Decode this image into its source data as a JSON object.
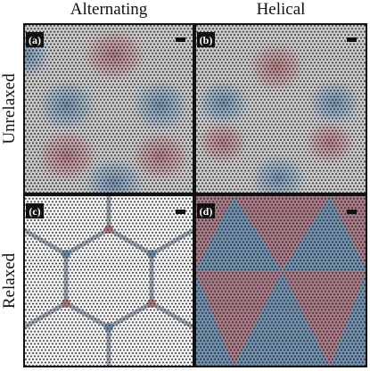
{
  "headers": {
    "columns": [
      "Alternating",
      "Helical"
    ],
    "rows": [
      "Unrelaxed",
      "Relaxed"
    ]
  },
  "panels": [
    {
      "label": "(a)"
    },
    {
      "label": "(b)"
    },
    {
      "label": "(c)"
    },
    {
      "label": "(d)"
    }
  ]
}
